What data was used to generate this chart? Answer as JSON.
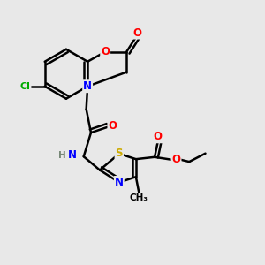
{
  "bg_color": "#e8e8e8",
  "atom_colors": {
    "C": "#000000",
    "O": "#ff0000",
    "N": "#0000ff",
    "S": "#ccaa00",
    "Cl": "#00aa00",
    "H": "#778877"
  },
  "bond_color": "#000000",
  "bond_width": 1.8
}
